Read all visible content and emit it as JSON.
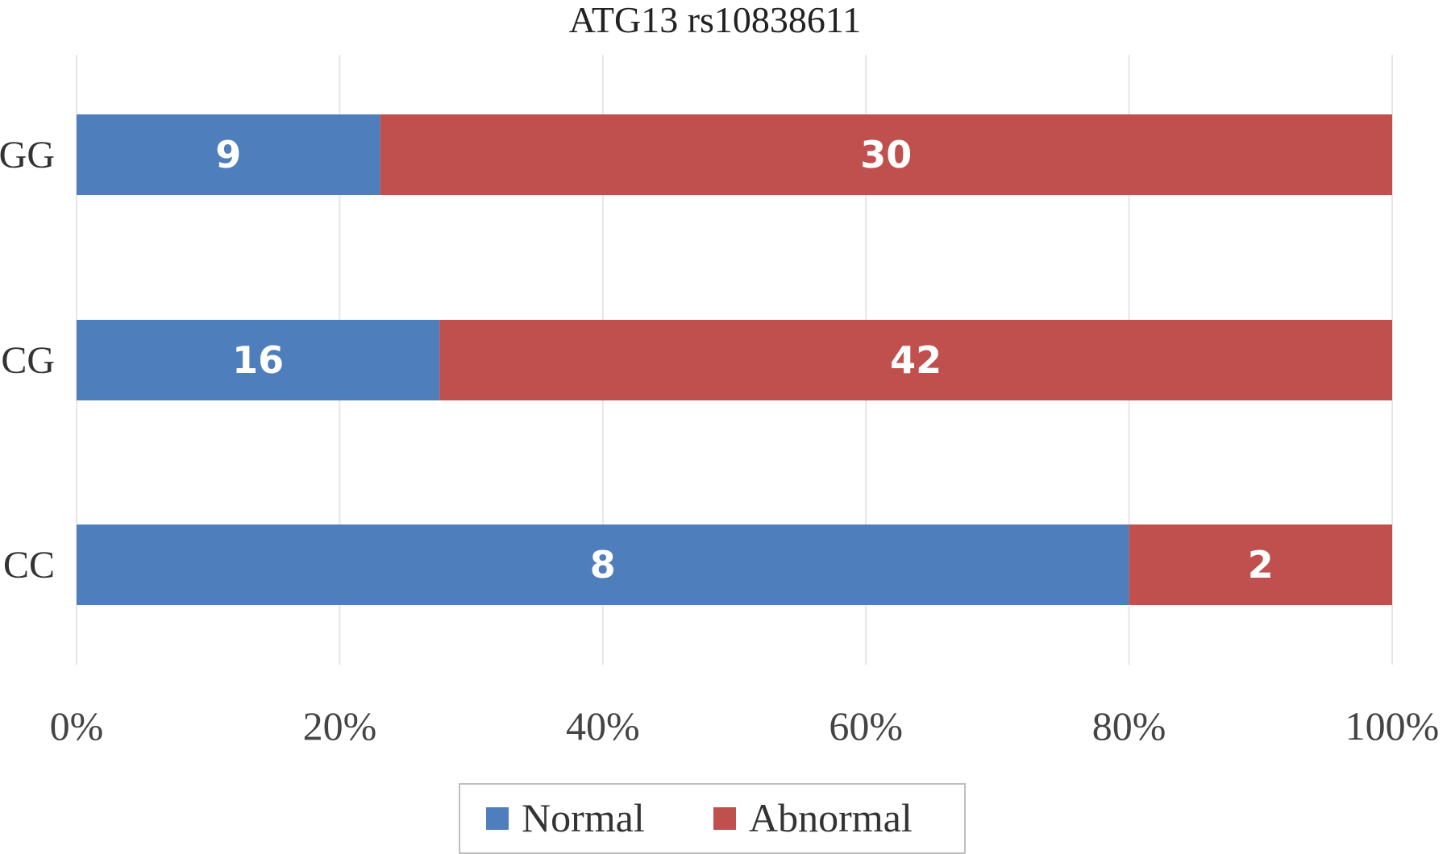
{
  "chart_data": {
    "type": "bar",
    "orientation": "horizontal",
    "stacked": "percent",
    "title": "ATG13 rs10838611",
    "categories": [
      "GG",
      "CG",
      "CC"
    ],
    "series": [
      {
        "name": "Normal",
        "color": "#4f7ebd",
        "values": [
          9,
          16,
          8
        ]
      },
      {
        "name": "Abnormal",
        "color": "#c0504d",
        "values": [
          30,
          42,
          2
        ]
      }
    ],
    "xlim": [
      0,
      100
    ],
    "xticks": [
      "0%",
      "20%",
      "40%",
      "60%",
      "80%",
      "100%"
    ],
    "grid": true,
    "legend": "bottom"
  }
}
